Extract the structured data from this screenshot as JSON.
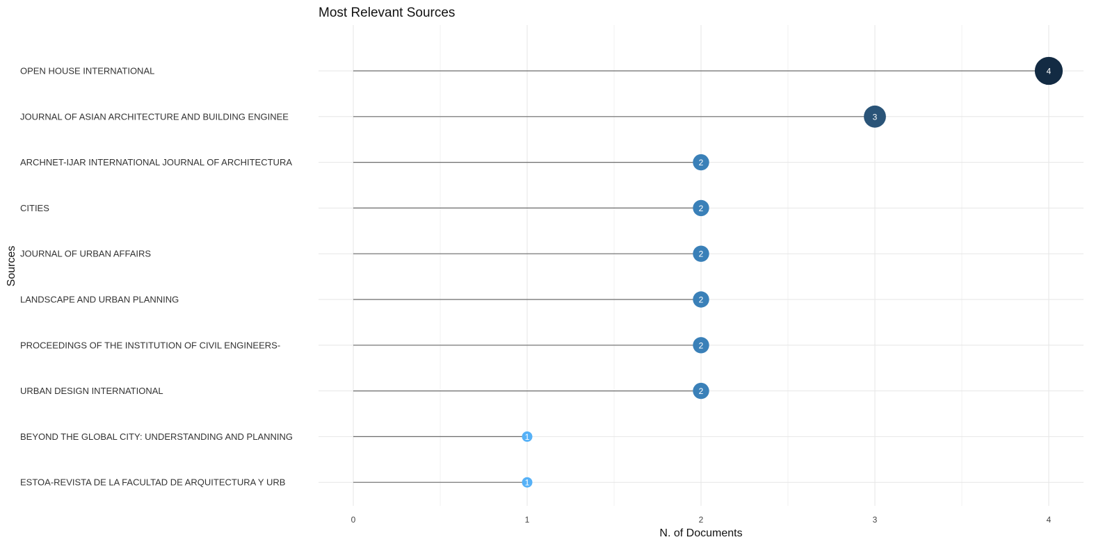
{
  "chart_data": {
    "type": "lollipop",
    "title": "Most Relevant Sources",
    "xlabel": "N. of Documents",
    "ylabel": "Sources",
    "xlim": [
      0,
      4
    ],
    "xticks": [
      0,
      1,
      2,
      3,
      4
    ],
    "grid": true,
    "legend": "none",
    "categories": [
      "OPEN HOUSE INTERNATIONAL",
      "JOURNAL OF ASIAN ARCHITECTURE AND BUILDING ENGINEE",
      "ARCHNET-IJAR INTERNATIONAL JOURNAL OF ARCHITECTURA",
      "CITIES",
      "JOURNAL OF URBAN AFFAIRS",
      "LANDSCAPE AND URBAN PLANNING",
      "PROCEEDINGS OF THE INSTITUTION OF CIVIL ENGINEERS-",
      "URBAN DESIGN INTERNATIONAL",
      "BEYOND THE GLOBAL CITY: UNDERSTANDING AND PLANNING",
      "ESTOA-REVISTA DE LA FACULTAD DE ARQUITECTURA Y URB"
    ],
    "values": [
      4,
      3,
      2,
      2,
      2,
      2,
      2,
      2,
      1,
      1
    ],
    "point_labels": [
      "4",
      "3",
      "2",
      "2",
      "2",
      "2",
      "2",
      "2",
      "1",
      "1"
    ],
    "colors": {
      "value_4": "#132b43",
      "value_3": "#2a5478",
      "value_2": "#3a80b8",
      "value_1": "#56b1f7",
      "stem": "#6b6b6b"
    }
  }
}
